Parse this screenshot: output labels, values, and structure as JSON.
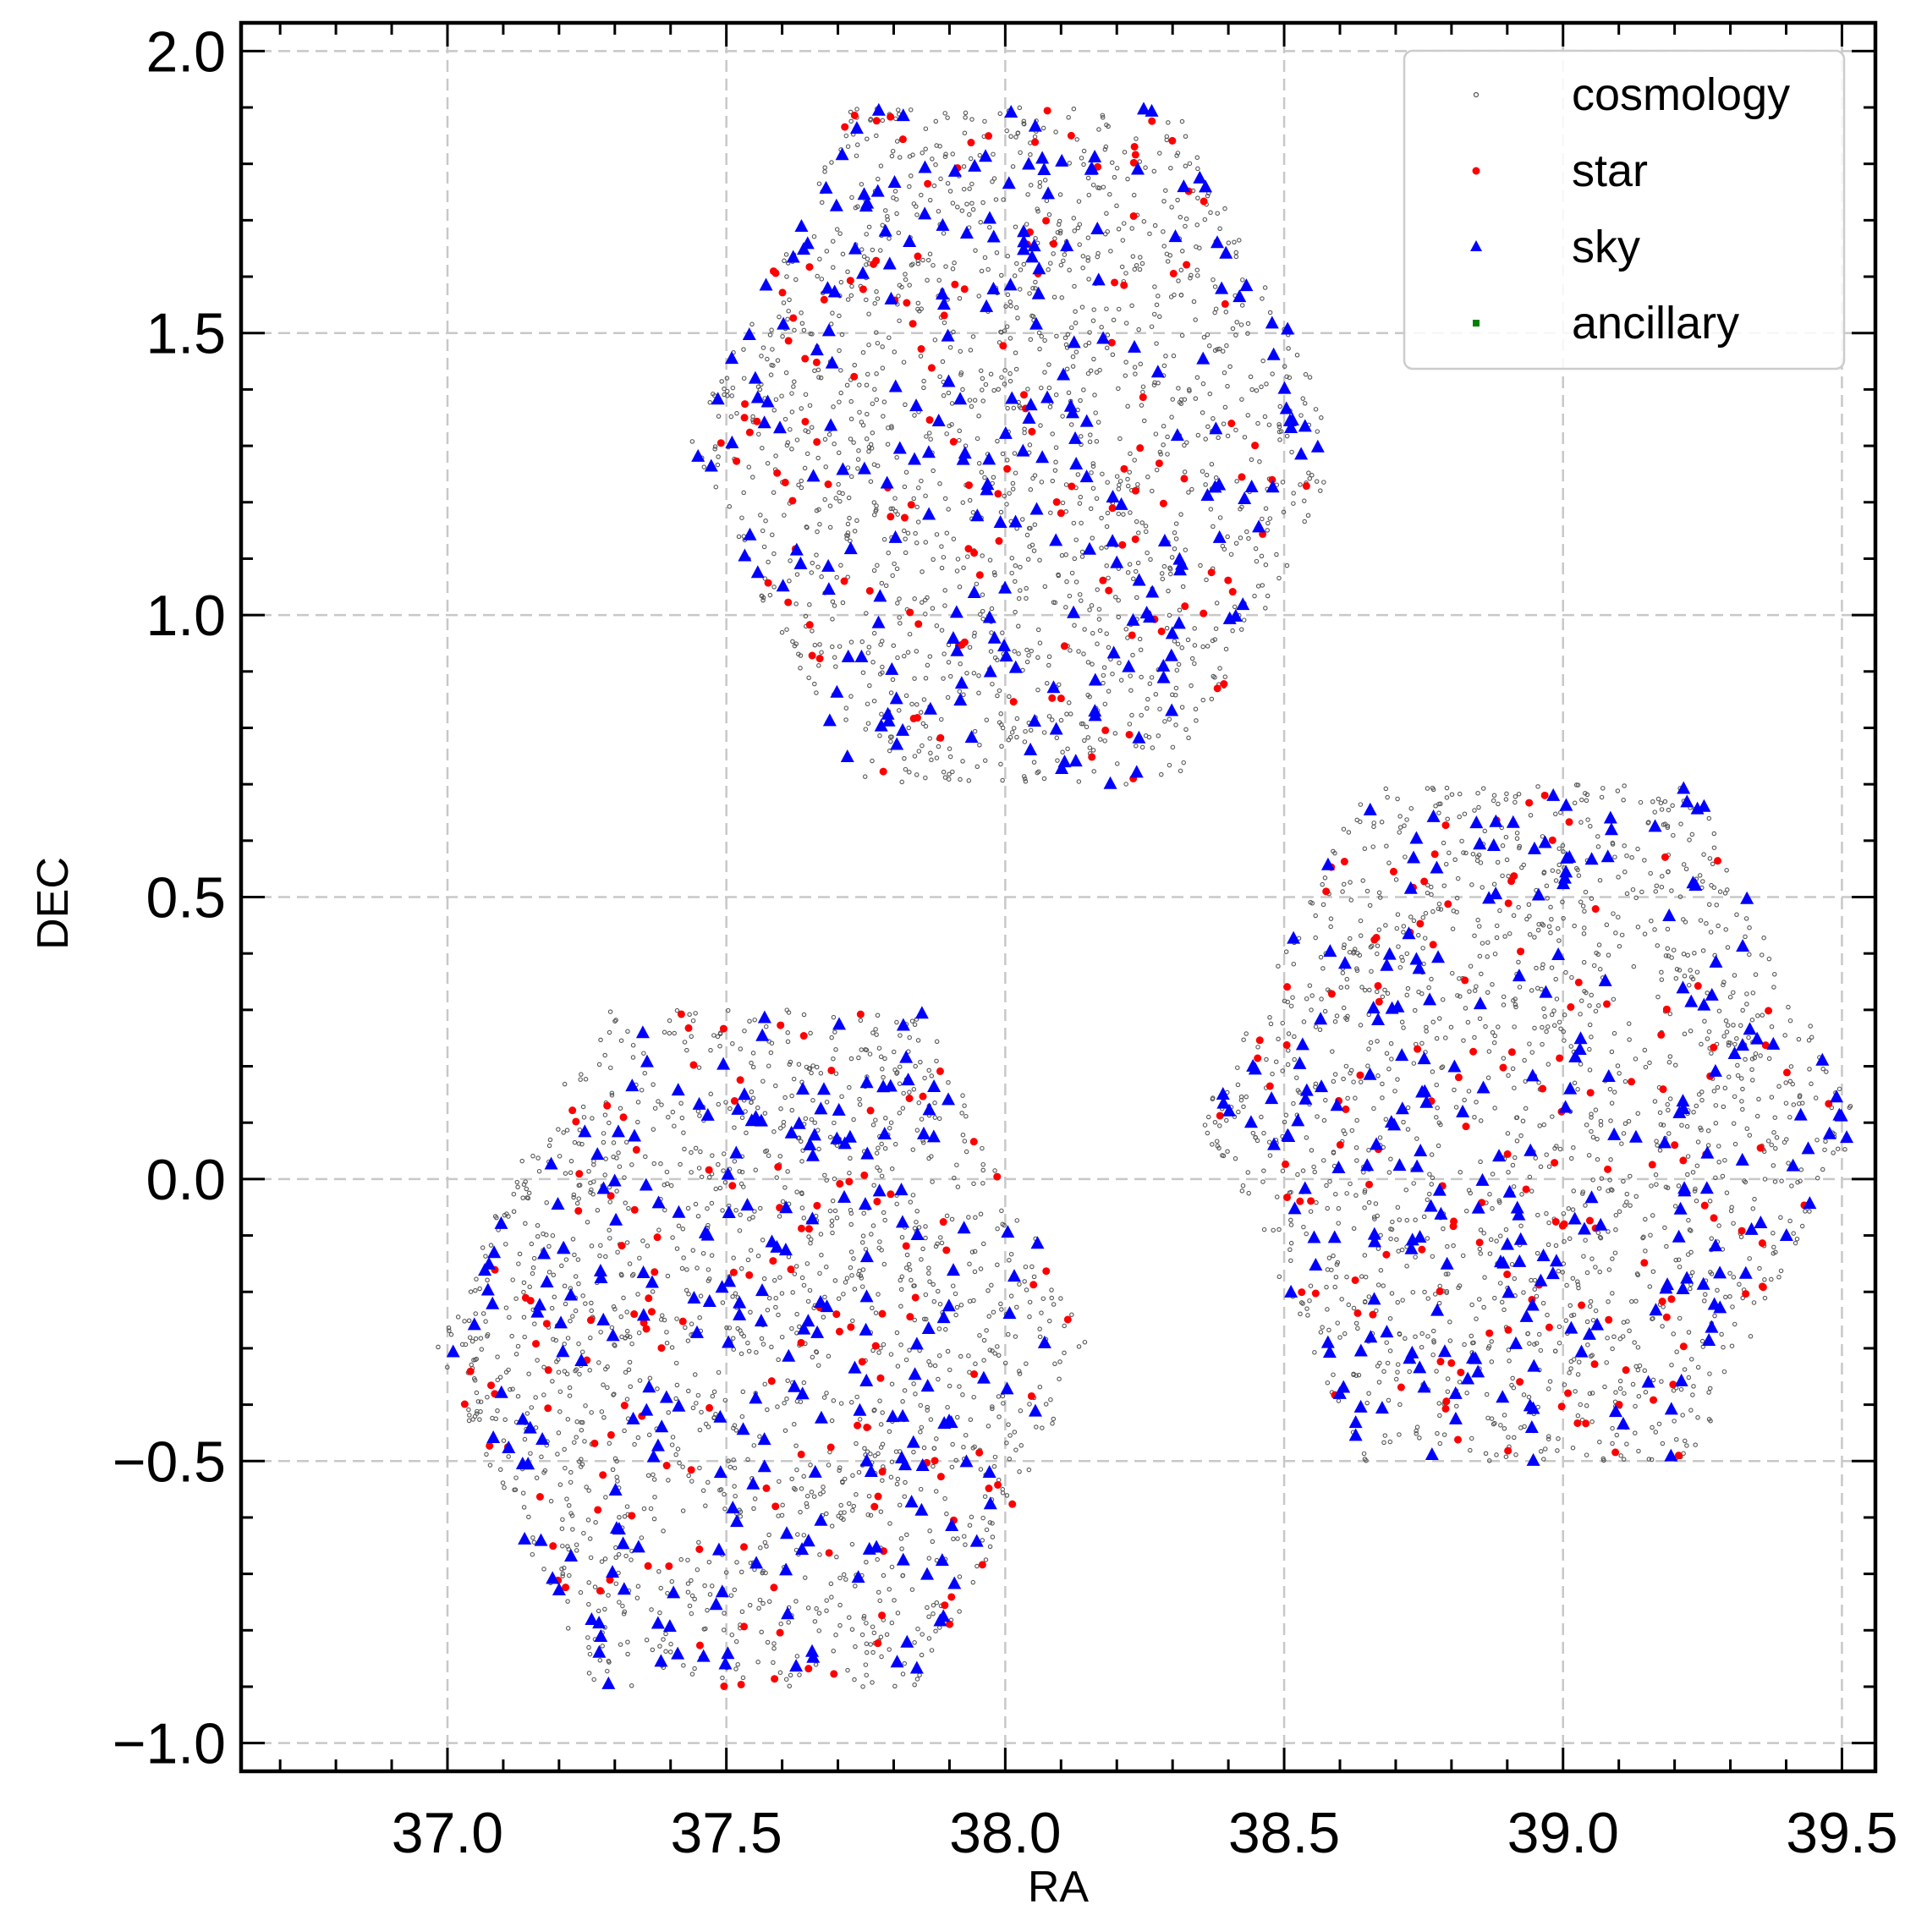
{
  "chart_data": {
    "type": "scatter",
    "title": "",
    "xlabel": "RA",
    "ylabel": "DEC",
    "xlim": [
      36.63,
      39.56
    ],
    "ylim": [
      -1.05,
      2.05
    ],
    "xticks": [
      37.0,
      37.5,
      38.0,
      38.5,
      39.0,
      39.5
    ],
    "xtick_labels": [
      "37.0",
      "37.5",
      "38.0",
      "38.5",
      "39.0",
      "39.5"
    ],
    "yticks": [
      -1.0,
      -0.5,
      0.0,
      0.5,
      1.0,
      1.5,
      2.0
    ],
    "ytick_labels": [
      "−1.0",
      "−0.5",
      "0.0",
      "0.5",
      "1.0",
      "1.5",
      "2.0"
    ],
    "grid": true,
    "legend_position": "top-right",
    "fields": [
      {
        "ra_center": 38.02,
        "dec_center": 1.3,
        "ra_half_width": 0.59,
        "dec_half_height": 0.6
      },
      {
        "ra_center": 37.56,
        "dec_center": -0.3,
        "ra_half_width": 0.59,
        "dec_half_height": 0.6
      },
      {
        "ra_center": 38.94,
        "dec_center": 0.1,
        "ra_half_width": 0.59,
        "dec_half_height": 0.6
      }
    ],
    "series": [
      {
        "name": "cosmology",
        "marker": "dot",
        "color": "#555555",
        "count_per_field": 1500
      },
      {
        "name": "star",
        "marker": "circle",
        "color": "#ff0000",
        "count_per_field": 140
      },
      {
        "name": "sky",
        "marker": "triangle",
        "color": "#0000ff",
        "count_per_field": 230
      },
      {
        "name": "ancillary",
        "marker": "square",
        "color": "#008000",
        "count_per_field": 0
      }
    ]
  }
}
